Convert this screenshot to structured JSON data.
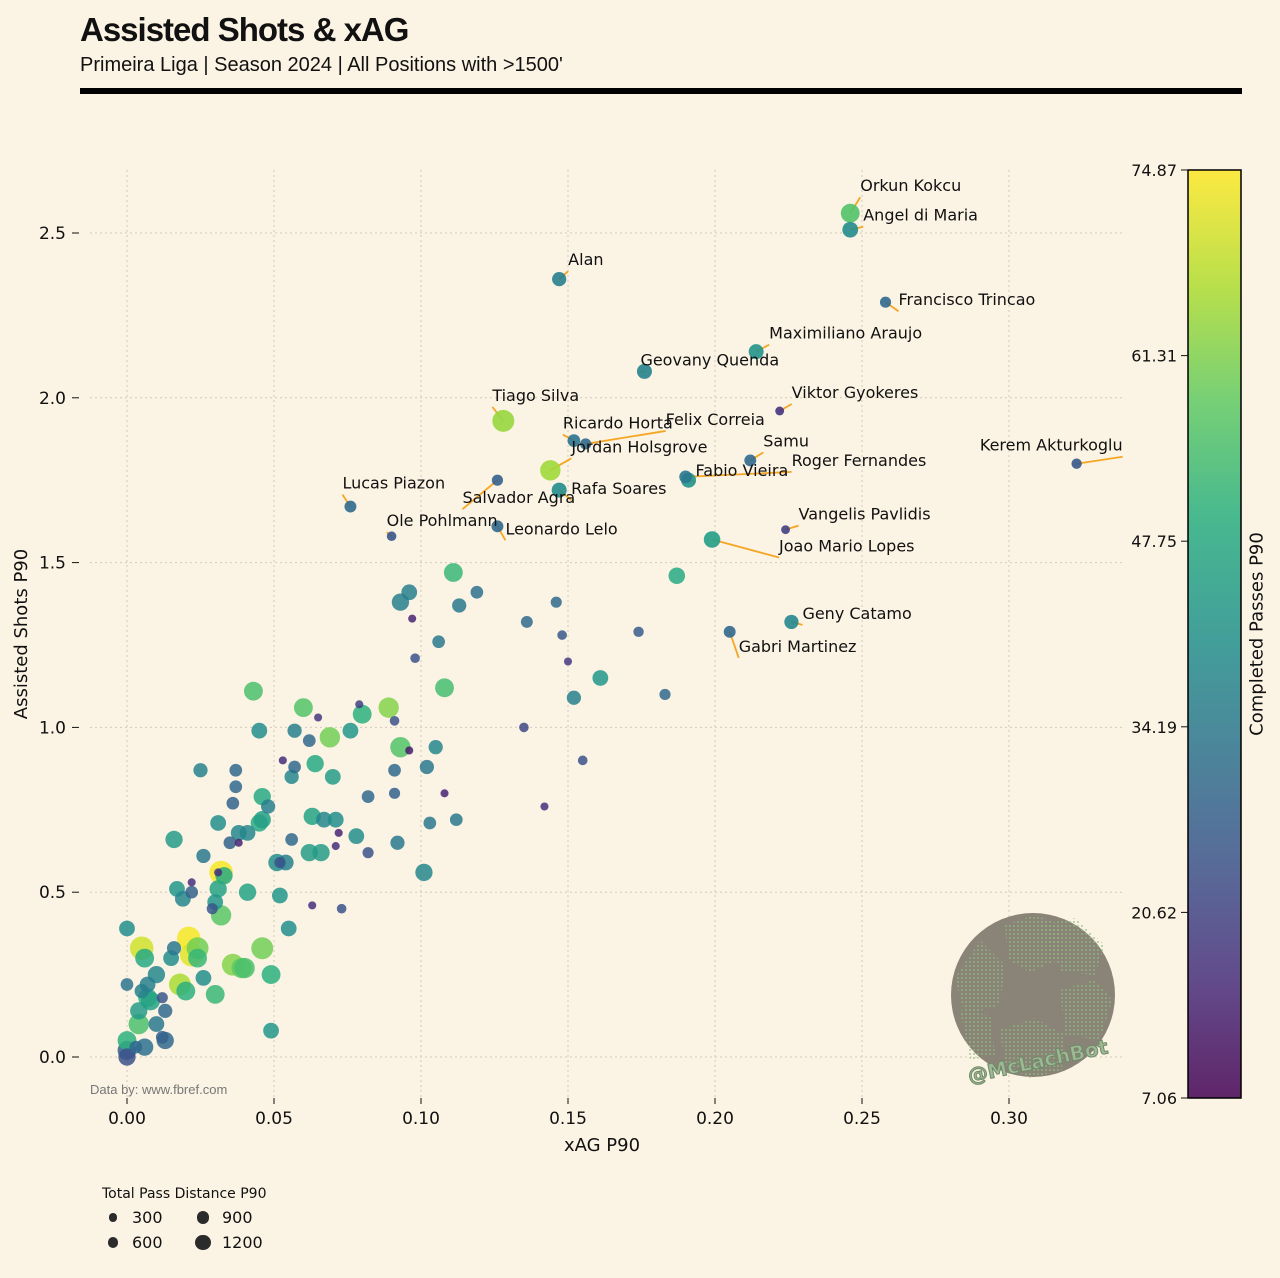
{
  "header": {
    "title": "Assisted Shots & xAG",
    "subtitle": "Primeira Liga | Season 2024 | All Positions with >1500'"
  },
  "footnote": "Data by: www.fbref.com",
  "watermark": "@McLachBot",
  "colorbar": {
    "label": "Completed Passes P90",
    "ticks": [
      "74.87",
      "61.31",
      "47.75",
      "34.19",
      "20.62",
      "7.06"
    ],
    "min": 7.06,
    "max": 74.87,
    "colormap": "viridis"
  },
  "size_legend": {
    "title": "Total Pass Distance P90",
    "items": [
      {
        "label": "300",
        "value": 300
      },
      {
        "label": "900",
        "value": 900
      },
      {
        "label": "600",
        "value": 600
      },
      {
        "label": "1200",
        "value": 1200
      }
    ]
  },
  "colors": {
    "background": "#fbf3e4",
    "annotation_line": "#f5a623",
    "grid": "#cfcfcf"
  },
  "chart_data": {
    "type": "scatter",
    "title": "Assisted Shots & xAG",
    "xlabel": "xAG P90",
    "ylabel": "Assisted Shots P90",
    "xlim": [
      -0.01,
      0.34
    ],
    "ylim": [
      -0.12,
      2.7
    ],
    "xticks": [
      "0.00",
      "0.05",
      "0.10",
      "0.15",
      "0.20",
      "0.25",
      "0.30"
    ],
    "xtick_values": [
      0,
      0.05,
      0.1,
      0.15,
      0.2,
      0.25,
      0.3
    ],
    "yticks": [
      "0.0",
      "0.5",
      "1.0",
      "1.5",
      "2.0",
      "2.5"
    ],
    "ytick_values": [
      0,
      0.5,
      1.0,
      1.5,
      2.0,
      2.5
    ],
    "grid": true,
    "labeled_points": [
      {
        "name": "Orkun Kokcu",
        "x": 0.246,
        "y": 2.56,
        "passes": 56,
        "distance": 900
      },
      {
        "name": "Angel di Maria",
        "x": 0.246,
        "y": 2.51,
        "passes": 40,
        "distance": 700
      },
      {
        "name": "Alan",
        "x": 0.147,
        "y": 2.36,
        "passes": 36,
        "distance": 600
      },
      {
        "name": "Francisco Trincao",
        "x": 0.258,
        "y": 2.29,
        "passes": 30,
        "distance": 400
      },
      {
        "name": "Maximiliano Araujo",
        "x": 0.214,
        "y": 2.14,
        "passes": 42,
        "distance": 650
      },
      {
        "name": "Geovany Quenda",
        "x": 0.176,
        "y": 2.08,
        "passes": 37,
        "distance": 650
      },
      {
        "name": "Viktor Gyokeres",
        "x": 0.222,
        "y": 1.96,
        "passes": 17,
        "distance": 250
      },
      {
        "name": "Tiago Silva",
        "x": 0.128,
        "y": 1.93,
        "passes": 64,
        "distance": 1100
      },
      {
        "name": "Ricardo Horta",
        "x": 0.152,
        "y": 1.87,
        "passes": 33,
        "distance": 500
      },
      {
        "name": "Felix Correia",
        "x": 0.156,
        "y": 1.86,
        "passes": 30,
        "distance": 400
      },
      {
        "name": "Samu",
        "x": 0.212,
        "y": 1.81,
        "passes": 30,
        "distance": 450
      },
      {
        "name": "Jordan Holsgrove",
        "x": 0.144,
        "y": 1.78,
        "passes": 65,
        "distance": 1000
      },
      {
        "name": "Fabio Vieira",
        "x": 0.191,
        "y": 1.75,
        "passes": 42,
        "distance": 650
      },
      {
        "name": "Roger Fernandes",
        "x": 0.19,
        "y": 1.76,
        "passes": 34,
        "distance": 500
      },
      {
        "name": "Kerem Akturkoglu",
        "x": 0.323,
        "y": 1.8,
        "passes": 25,
        "distance": 350
      },
      {
        "name": "Salvador Agra",
        "x": 0.126,
        "y": 1.75,
        "passes": 28,
        "distance": 400
      },
      {
        "name": "Rafa Soares",
        "x": 0.147,
        "y": 1.72,
        "passes": 40,
        "distance": 650
      },
      {
        "name": "Lucas Piazon",
        "x": 0.076,
        "y": 1.67,
        "passes": 31,
        "distance": 450
      },
      {
        "name": "Ole Pohlmann",
        "x": 0.09,
        "y": 1.58,
        "passes": 25,
        "distance": 300
      },
      {
        "name": "Leonardo Lelo",
        "x": 0.126,
        "y": 1.61,
        "passes": 30,
        "distance": 450
      },
      {
        "name": "Vangelis Pavlidis",
        "x": 0.224,
        "y": 1.6,
        "passes": 20,
        "distance": 250
      },
      {
        "name": "Joao Mario Lopes",
        "x": 0.199,
        "y": 1.57,
        "passes": 45,
        "distance": 750
      },
      {
        "name": "Geny Catamo",
        "x": 0.226,
        "y": 1.32,
        "passes": 38,
        "distance": 600
      },
      {
        "name": "Gabri Martinez",
        "x": 0.205,
        "y": 1.29,
        "passes": 30,
        "distance": 450
      }
    ],
    "points": [
      {
        "x": 0.0,
        "y": 0.0,
        "passes": 24,
        "distance": 800
      },
      {
        "x": 0.0,
        "y": 0.02,
        "passes": 28,
        "distance": 900
      },
      {
        "x": 0.0,
        "y": 0.05,
        "passes": 50,
        "distance": 900
      },
      {
        "x": 0.003,
        "y": 0.03,
        "passes": 30,
        "distance": 500
      },
      {
        "x": 0.006,
        "y": 0.03,
        "passes": 32,
        "distance": 800
      },
      {
        "x": 0.004,
        "y": 0.1,
        "passes": 55,
        "distance": 1000
      },
      {
        "x": 0.004,
        "y": 0.14,
        "passes": 44,
        "distance": 800
      },
      {
        "x": 0.007,
        "y": 0.18,
        "passes": 50,
        "distance": 900
      },
      {
        "x": 0.005,
        "y": 0.2,
        "passes": 36,
        "distance": 600
      },
      {
        "x": 0.0,
        "y": 0.22,
        "passes": 33,
        "distance": 500
      },
      {
        "x": 0.007,
        "y": 0.22,
        "passes": 36,
        "distance": 700
      },
      {
        "x": 0.008,
        "y": 0.17,
        "passes": 46,
        "distance": 900
      },
      {
        "x": 0.01,
        "y": 0.1,
        "passes": 34,
        "distance": 700
      },
      {
        "x": 0.012,
        "y": 0.18,
        "passes": 25,
        "distance": 400
      },
      {
        "x": 0.013,
        "y": 0.14,
        "passes": 30,
        "distance": 600
      },
      {
        "x": 0.012,
        "y": 0.06,
        "passes": 28,
        "distance": 500
      },
      {
        "x": 0.013,
        "y": 0.05,
        "passes": 30,
        "distance": 800
      },
      {
        "x": 0.01,
        "y": 0.25,
        "passes": 38,
        "distance": 800
      },
      {
        "x": 0.006,
        "y": 0.3,
        "passes": 48,
        "distance": 900
      },
      {
        "x": 0.005,
        "y": 0.33,
        "passes": 70,
        "distance": 1200
      },
      {
        "x": 0.0,
        "y": 0.39,
        "passes": 40,
        "distance": 700
      },
      {
        "x": 0.015,
        "y": 0.3,
        "passes": 40,
        "distance": 700
      },
      {
        "x": 0.016,
        "y": 0.33,
        "passes": 34,
        "distance": 600
      },
      {
        "x": 0.018,
        "y": 0.22,
        "passes": 66,
        "distance": 1100
      },
      {
        "x": 0.02,
        "y": 0.2,
        "passes": 50,
        "distance": 900
      },
      {
        "x": 0.017,
        "y": 0.51,
        "passes": 42,
        "distance": 700
      },
      {
        "x": 0.019,
        "y": 0.48,
        "passes": 38,
        "distance": 700
      },
      {
        "x": 0.021,
        "y": 0.36,
        "passes": 74,
        "distance": 1200
      },
      {
        "x": 0.022,
        "y": 0.31,
        "passes": 72,
        "distance": 1200
      },
      {
        "x": 0.024,
        "y": 0.33,
        "passes": 60,
        "distance": 1100
      },
      {
        "x": 0.024,
        "y": 0.3,
        "passes": 52,
        "distance": 900
      },
      {
        "x": 0.022,
        "y": 0.53,
        "passes": 16,
        "distance": 200
      },
      {
        "x": 0.022,
        "y": 0.5,
        "passes": 28,
        "distance": 500
      },
      {
        "x": 0.026,
        "y": 0.61,
        "passes": 34,
        "distance": 600
      },
      {
        "x": 0.026,
        "y": 0.24,
        "passes": 40,
        "distance": 700
      },
      {
        "x": 0.016,
        "y": 0.66,
        "passes": 44,
        "distance": 800
      },
      {
        "x": 0.025,
        "y": 0.87,
        "passes": 37,
        "distance": 600
      },
      {
        "x": 0.029,
        "y": 0.45,
        "passes": 25,
        "distance": 400
      },
      {
        "x": 0.03,
        "y": 0.47,
        "passes": 42,
        "distance": 700
      },
      {
        "x": 0.031,
        "y": 0.51,
        "passes": 46,
        "distance": 800
      },
      {
        "x": 0.03,
        "y": 0.19,
        "passes": 52,
        "distance": 900
      },
      {
        "x": 0.032,
        "y": 0.43,
        "passes": 57,
        "distance": 1000
      },
      {
        "x": 0.031,
        "y": 0.56,
        "passes": 16,
        "distance": 200
      },
      {
        "x": 0.032,
        "y": 0.56,
        "passes": 74,
        "distance": 1200
      },
      {
        "x": 0.033,
        "y": 0.55,
        "passes": 48,
        "distance": 800
      },
      {
        "x": 0.031,
        "y": 0.71,
        "passes": 40,
        "distance": 700
      },
      {
        "x": 0.035,
        "y": 0.65,
        "passes": 28,
        "distance": 500
      },
      {
        "x": 0.036,
        "y": 0.77,
        "passes": 28,
        "distance": 500
      },
      {
        "x": 0.037,
        "y": 0.82,
        "passes": 30,
        "distance": 500
      },
      {
        "x": 0.037,
        "y": 0.87,
        "passes": 30,
        "distance": 500
      },
      {
        "x": 0.038,
        "y": 0.65,
        "passes": 14,
        "distance": 200
      },
      {
        "x": 0.038,
        "y": 0.68,
        "passes": 38,
        "distance": 700
      },
      {
        "x": 0.036,
        "y": 0.28,
        "passes": 62,
        "distance": 1100
      },
      {
        "x": 0.039,
        "y": 0.27,
        "passes": 58,
        "distance": 1000
      },
      {
        "x": 0.04,
        "y": 0.27,
        "passes": 55,
        "distance": 1000
      },
      {
        "x": 0.041,
        "y": 0.5,
        "passes": 46,
        "distance": 800
      },
      {
        "x": 0.041,
        "y": 0.68,
        "passes": 38,
        "distance": 700
      },
      {
        "x": 0.043,
        "y": 1.11,
        "passes": 55,
        "distance": 900
      },
      {
        "x": 0.045,
        "y": 0.99,
        "passes": 40,
        "distance": 700
      },
      {
        "x": 0.045,
        "y": 0.71,
        "passes": 48,
        "distance": 800
      },
      {
        "x": 0.046,
        "y": 0.72,
        "passes": 45,
        "distance": 800
      },
      {
        "x": 0.046,
        "y": 0.79,
        "passes": 48,
        "distance": 800
      },
      {
        "x": 0.046,
        "y": 0.33,
        "passes": 60,
        "distance": 1100
      },
      {
        "x": 0.048,
        "y": 0.76,
        "passes": 36,
        "distance": 600
      },
      {
        "x": 0.049,
        "y": 0.25,
        "passes": 50,
        "distance": 900
      },
      {
        "x": 0.049,
        "y": 0.08,
        "passes": 42,
        "distance": 700
      },
      {
        "x": 0.051,
        "y": 0.59,
        "passes": 40,
        "distance": 800
      },
      {
        "x": 0.052,
        "y": 0.49,
        "passes": 42,
        "distance": 700
      },
      {
        "x": 0.052,
        "y": 0.59,
        "passes": 24,
        "distance": 400
      },
      {
        "x": 0.053,
        "y": 0.9,
        "passes": 15,
        "distance": 200
      },
      {
        "x": 0.054,
        "y": 0.59,
        "passes": 36,
        "distance": 700
      },
      {
        "x": 0.055,
        "y": 0.39,
        "passes": 40,
        "distance": 700
      },
      {
        "x": 0.056,
        "y": 0.66,
        "passes": 30,
        "distance": 500
      },
      {
        "x": 0.056,
        "y": 0.85,
        "passes": 38,
        "distance": 600
      },
      {
        "x": 0.057,
        "y": 0.88,
        "passes": 30,
        "distance": 500
      },
      {
        "x": 0.057,
        "y": 0.99,
        "passes": 36,
        "distance": 600
      },
      {
        "x": 0.06,
        "y": 1.06,
        "passes": 56,
        "distance": 900
      },
      {
        "x": 0.062,
        "y": 0.96,
        "passes": 30,
        "distance": 500
      },
      {
        "x": 0.062,
        "y": 0.62,
        "passes": 44,
        "distance": 800
      },
      {
        "x": 0.063,
        "y": 0.73,
        "passes": 46,
        "distance": 800
      },
      {
        "x": 0.063,
        "y": 0.46,
        "passes": 16,
        "distance": 200
      },
      {
        "x": 0.064,
        "y": 0.89,
        "passes": 48,
        "distance": 800
      },
      {
        "x": 0.065,
        "y": 1.03,
        "passes": 18,
        "distance": 200
      },
      {
        "x": 0.066,
        "y": 0.62,
        "passes": 44,
        "distance": 800
      },
      {
        "x": 0.067,
        "y": 0.72,
        "passes": 38,
        "distance": 700
      },
      {
        "x": 0.069,
        "y": 0.97,
        "passes": 60,
        "distance": 1000
      },
      {
        "x": 0.07,
        "y": 0.85,
        "passes": 44,
        "distance": 700
      },
      {
        "x": 0.071,
        "y": 0.72,
        "passes": 40,
        "distance": 700
      },
      {
        "x": 0.071,
        "y": 0.64,
        "passes": 16,
        "distance": 200
      },
      {
        "x": 0.072,
        "y": 0.68,
        "passes": 14,
        "distance": 200
      },
      {
        "x": 0.073,
        "y": 0.45,
        "passes": 24,
        "distance": 300
      },
      {
        "x": 0.076,
        "y": 0.99,
        "passes": 42,
        "distance": 700
      },
      {
        "x": 0.078,
        "y": 0.67,
        "passes": 40,
        "distance": 700
      },
      {
        "x": 0.079,
        "y": 1.07,
        "passes": 20,
        "distance": 200
      },
      {
        "x": 0.08,
        "y": 1.04,
        "passes": 50,
        "distance": 900
      },
      {
        "x": 0.082,
        "y": 0.79,
        "passes": 30,
        "distance": 500
      },
      {
        "x": 0.082,
        "y": 0.62,
        "passes": 24,
        "distance": 400
      },
      {
        "x": 0.089,
        "y": 1.06,
        "passes": 62,
        "distance": 1000
      },
      {
        "x": 0.091,
        "y": 1.02,
        "passes": 24,
        "distance": 300
      },
      {
        "x": 0.091,
        "y": 0.87,
        "passes": 30,
        "distance": 500
      },
      {
        "x": 0.091,
        "y": 0.8,
        "passes": 28,
        "distance": 400
      },
      {
        "x": 0.092,
        "y": 0.65,
        "passes": 34,
        "distance": 600
      },
      {
        "x": 0.093,
        "y": 0.94,
        "passes": 56,
        "distance": 1000
      },
      {
        "x": 0.093,
        "y": 1.38,
        "passes": 36,
        "distance": 800
      },
      {
        "x": 0.096,
        "y": 1.41,
        "passes": 36,
        "distance": 700
      },
      {
        "x": 0.096,
        "y": 0.93,
        "passes": 12,
        "distance": 200
      },
      {
        "x": 0.097,
        "y": 1.33,
        "passes": 14,
        "distance": 200
      },
      {
        "x": 0.098,
        "y": 1.21,
        "passes": 24,
        "distance": 300
      },
      {
        "x": 0.101,
        "y": 0.56,
        "passes": 38,
        "distance": 800
      },
      {
        "x": 0.102,
        "y": 0.88,
        "passes": 34,
        "distance": 600
      },
      {
        "x": 0.103,
        "y": 0.71,
        "passes": 34,
        "distance": 500
      },
      {
        "x": 0.105,
        "y": 0.94,
        "passes": 38,
        "distance": 600
      },
      {
        "x": 0.106,
        "y": 1.26,
        "passes": 34,
        "distance": 500
      },
      {
        "x": 0.108,
        "y": 0.8,
        "passes": 14,
        "distance": 200
      },
      {
        "x": 0.108,
        "y": 1.12,
        "passes": 54,
        "distance": 900
      },
      {
        "x": 0.111,
        "y": 1.47,
        "passes": 52,
        "distance": 900
      },
      {
        "x": 0.112,
        "y": 0.72,
        "passes": 34,
        "distance": 500
      },
      {
        "x": 0.113,
        "y": 1.37,
        "passes": 34,
        "distance": 600
      },
      {
        "x": 0.119,
        "y": 1.41,
        "passes": 32,
        "distance": 500
      },
      {
        "x": 0.135,
        "y": 1.0,
        "passes": 22,
        "distance": 300
      },
      {
        "x": 0.136,
        "y": 1.32,
        "passes": 30,
        "distance": 450
      },
      {
        "x": 0.142,
        "y": 0.76,
        "passes": 16,
        "distance": 200
      },
      {
        "x": 0.146,
        "y": 1.38,
        "passes": 30,
        "distance": 400
      },
      {
        "x": 0.148,
        "y": 1.28,
        "passes": 25,
        "distance": 300
      },
      {
        "x": 0.15,
        "y": 1.2,
        "passes": 18,
        "distance": 200
      },
      {
        "x": 0.152,
        "y": 1.09,
        "passes": 36,
        "distance": 600
      },
      {
        "x": 0.155,
        "y": 0.9,
        "passes": 24,
        "distance": 300
      },
      {
        "x": 0.161,
        "y": 1.15,
        "passes": 42,
        "distance": 700
      },
      {
        "x": 0.174,
        "y": 1.29,
        "passes": 26,
        "distance": 350
      },
      {
        "x": 0.183,
        "y": 1.1,
        "passes": 30,
        "distance": 400
      },
      {
        "x": 0.187,
        "y": 1.46,
        "passes": 48,
        "distance": 750
      }
    ]
  }
}
